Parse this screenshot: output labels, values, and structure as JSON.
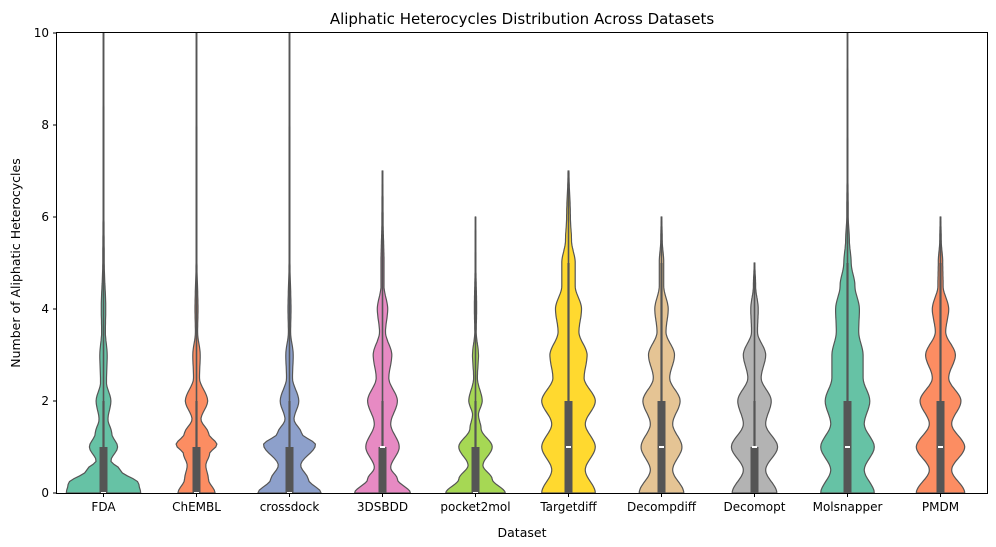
{
  "chart_data": {
    "type": "violin",
    "title": "Aliphatic Heterocycles Distribution Across Datasets",
    "xlabel": "Dataset",
    "ylabel": "Number of Aliphatic Heterocycles",
    "ylim": [
      0,
      10
    ],
    "yticks": [
      0,
      2,
      4,
      6,
      8,
      10
    ],
    "grid": false,
    "categories": [
      "FDA",
      "ChEMBL",
      "crossdock",
      "3DSBDD",
      "pocket2mol",
      "Targetdiff",
      "Decompdiff",
      "Decomopt",
      "Molsnapper",
      "PMDM"
    ],
    "series": [
      {
        "color": "#66c2a5",
        "whisker_max": 10,
        "q1": 0,
        "median": 0,
        "q3": 1,
        "lower_whisker": 0,
        "upper_whisker": 2,
        "profile": [
          [
            0,
            1.0
          ],
          [
            0.2,
            0.95
          ],
          [
            0.5,
            0.45
          ],
          [
            0.7,
            0.2
          ],
          [
            1,
            0.38
          ],
          [
            1.3,
            0.22
          ],
          [
            1.6,
            0.12
          ],
          [
            2,
            0.2
          ],
          [
            2.4,
            0.08
          ],
          [
            3,
            0.1
          ],
          [
            3.5,
            0.05
          ],
          [
            4,
            0.06
          ],
          [
            5,
            0.02
          ],
          [
            6,
            0.012
          ],
          [
            10,
            0.008
          ]
        ]
      },
      {
        "color": "#fc8d62",
        "whisker_max": 10,
        "q1": 0,
        "median": 0,
        "q3": 1,
        "lower_whisker": 0,
        "upper_whisker": 2,
        "profile": [
          [
            0,
            0.5
          ],
          [
            0.3,
            0.32
          ],
          [
            0.6,
            0.25
          ],
          [
            0.85,
            0.35
          ],
          [
            1.05,
            0.55
          ],
          [
            1.3,
            0.32
          ],
          [
            1.6,
            0.12
          ],
          [
            2,
            0.3
          ],
          [
            2.5,
            0.08
          ],
          [
            3,
            0.1
          ],
          [
            3.5,
            0.03
          ],
          [
            4,
            0.04
          ],
          [
            5,
            0.012
          ],
          [
            10,
            0.008
          ]
        ]
      },
      {
        "color": "#8da0cb",
        "whisker_max": 10,
        "q1": 0,
        "median": 0,
        "q3": 1,
        "lower_whisker": 0,
        "upper_whisker": 2,
        "profile": [
          [
            0,
            0.85
          ],
          [
            0.3,
            0.5
          ],
          [
            0.6,
            0.3
          ],
          [
            1.05,
            0.7
          ],
          [
            1.3,
            0.32
          ],
          [
            1.6,
            0.12
          ],
          [
            2,
            0.25
          ],
          [
            2.5,
            0.08
          ],
          [
            3,
            0.1
          ],
          [
            3.5,
            0.03
          ],
          [
            4,
            0.04
          ],
          [
            5,
            0.012
          ],
          [
            10,
            0.008
          ]
        ]
      },
      {
        "color": "#e78ac3",
        "whisker_max": 7,
        "q1": 0,
        "median": 1,
        "q3": 1,
        "lower_whisker": 0,
        "upper_whisker": 2,
        "profile": [
          [
            0,
            0.75
          ],
          [
            0.3,
            0.4
          ],
          [
            0.55,
            0.22
          ],
          [
            1,
            0.45
          ],
          [
            1.5,
            0.22
          ],
          [
            2,
            0.4
          ],
          [
            2.5,
            0.17
          ],
          [
            3,
            0.25
          ],
          [
            3.5,
            0.08
          ],
          [
            4,
            0.14
          ],
          [
            4.5,
            0.04
          ],
          [
            5,
            0.04
          ],
          [
            6,
            0.015
          ],
          [
            7,
            0.008
          ]
        ]
      },
      {
        "color": "#a6d854",
        "whisker_max": 6,
        "q1": 0,
        "median": 0,
        "q3": 1,
        "lower_whisker": 0,
        "upper_whisker": 2,
        "profile": [
          [
            0,
            0.8
          ],
          [
            0.3,
            0.45
          ],
          [
            0.6,
            0.2
          ],
          [
            1,
            0.45
          ],
          [
            1.4,
            0.15
          ],
          [
            1.7,
            0.08
          ],
          [
            2,
            0.18
          ],
          [
            2.5,
            0.05
          ],
          [
            3,
            0.08
          ],
          [
            3.5,
            0.02
          ],
          [
            4,
            0.03
          ],
          [
            5,
            0.01
          ],
          [
            6,
            0.006
          ]
        ]
      },
      {
        "color": "#ffd92f",
        "whisker_max": 7,
        "q1": 0,
        "median": 1,
        "q3": 2,
        "lower_whisker": 0,
        "upper_whisker": 5,
        "profile": [
          [
            0,
            0.72
          ],
          [
            0.5,
            0.45
          ],
          [
            1,
            0.72
          ],
          [
            1.5,
            0.45
          ],
          [
            2,
            0.72
          ],
          [
            2.5,
            0.42
          ],
          [
            3,
            0.5
          ],
          [
            3.5,
            0.28
          ],
          [
            4,
            0.35
          ],
          [
            4.5,
            0.18
          ],
          [
            5,
            0.18
          ],
          [
            5.5,
            0.08
          ],
          [
            6,
            0.05
          ],
          [
            7,
            0.012
          ]
        ]
      },
      {
        "color": "#e5c494",
        "whisker_max": 6,
        "q1": 0,
        "median": 1,
        "q3": 2,
        "lower_whisker": 0,
        "upper_whisker": 5,
        "profile": [
          [
            0,
            0.6
          ],
          [
            0.5,
            0.3
          ],
          [
            1,
            0.55
          ],
          [
            1.5,
            0.3
          ],
          [
            2,
            0.5
          ],
          [
            2.5,
            0.22
          ],
          [
            3,
            0.35
          ],
          [
            3.5,
            0.12
          ],
          [
            4,
            0.18
          ],
          [
            4.5,
            0.06
          ],
          [
            5,
            0.06
          ],
          [
            5.5,
            0.02
          ],
          [
            6,
            0.008
          ]
        ]
      },
      {
        "color": "#b3b3b3",
        "whisker_max": 5,
        "q1": 0,
        "median": 1,
        "q3": 1,
        "lower_whisker": 0,
        "upper_whisker": 2,
        "profile": [
          [
            0,
            0.6
          ],
          [
            0.5,
            0.3
          ],
          [
            1,
            0.62
          ],
          [
            1.5,
            0.3
          ],
          [
            2,
            0.45
          ],
          [
            2.5,
            0.18
          ],
          [
            3,
            0.3
          ],
          [
            3.5,
            0.08
          ],
          [
            4,
            0.1
          ],
          [
            4.5,
            0.03
          ],
          [
            5,
            0.008
          ]
        ]
      },
      {
        "color": "#66c2a5",
        "whisker_max": 10,
        "q1": 0,
        "median": 1,
        "q3": 2,
        "lower_whisker": 0,
        "upper_whisker": 5,
        "profile": [
          [
            0,
            0.72
          ],
          [
            0.5,
            0.45
          ],
          [
            1,
            0.72
          ],
          [
            1.5,
            0.45
          ],
          [
            2,
            0.6
          ],
          [
            2.5,
            0.42
          ],
          [
            3,
            0.42
          ],
          [
            3.5,
            0.3
          ],
          [
            4,
            0.32
          ],
          [
            4.5,
            0.2
          ],
          [
            5,
            0.1
          ],
          [
            5.5,
            0.05
          ],
          [
            6,
            0.02
          ],
          [
            7,
            0.01
          ],
          [
            10,
            0.006
          ]
        ]
      },
      {
        "color": "#fc8d62",
        "whisker_max": 6,
        "q1": 0,
        "median": 1,
        "q3": 2,
        "lower_whisker": 0,
        "upper_whisker": 5,
        "profile": [
          [
            0,
            0.65
          ],
          [
            0.5,
            0.3
          ],
          [
            1,
            0.65
          ],
          [
            1.5,
            0.3
          ],
          [
            2,
            0.55
          ],
          [
            2.5,
            0.22
          ],
          [
            3,
            0.4
          ],
          [
            3.5,
            0.14
          ],
          [
            4,
            0.22
          ],
          [
            4.5,
            0.07
          ],
          [
            5,
            0.06
          ],
          [
            5.5,
            0.02
          ],
          [
            6,
            0.008
          ]
        ]
      }
    ]
  }
}
